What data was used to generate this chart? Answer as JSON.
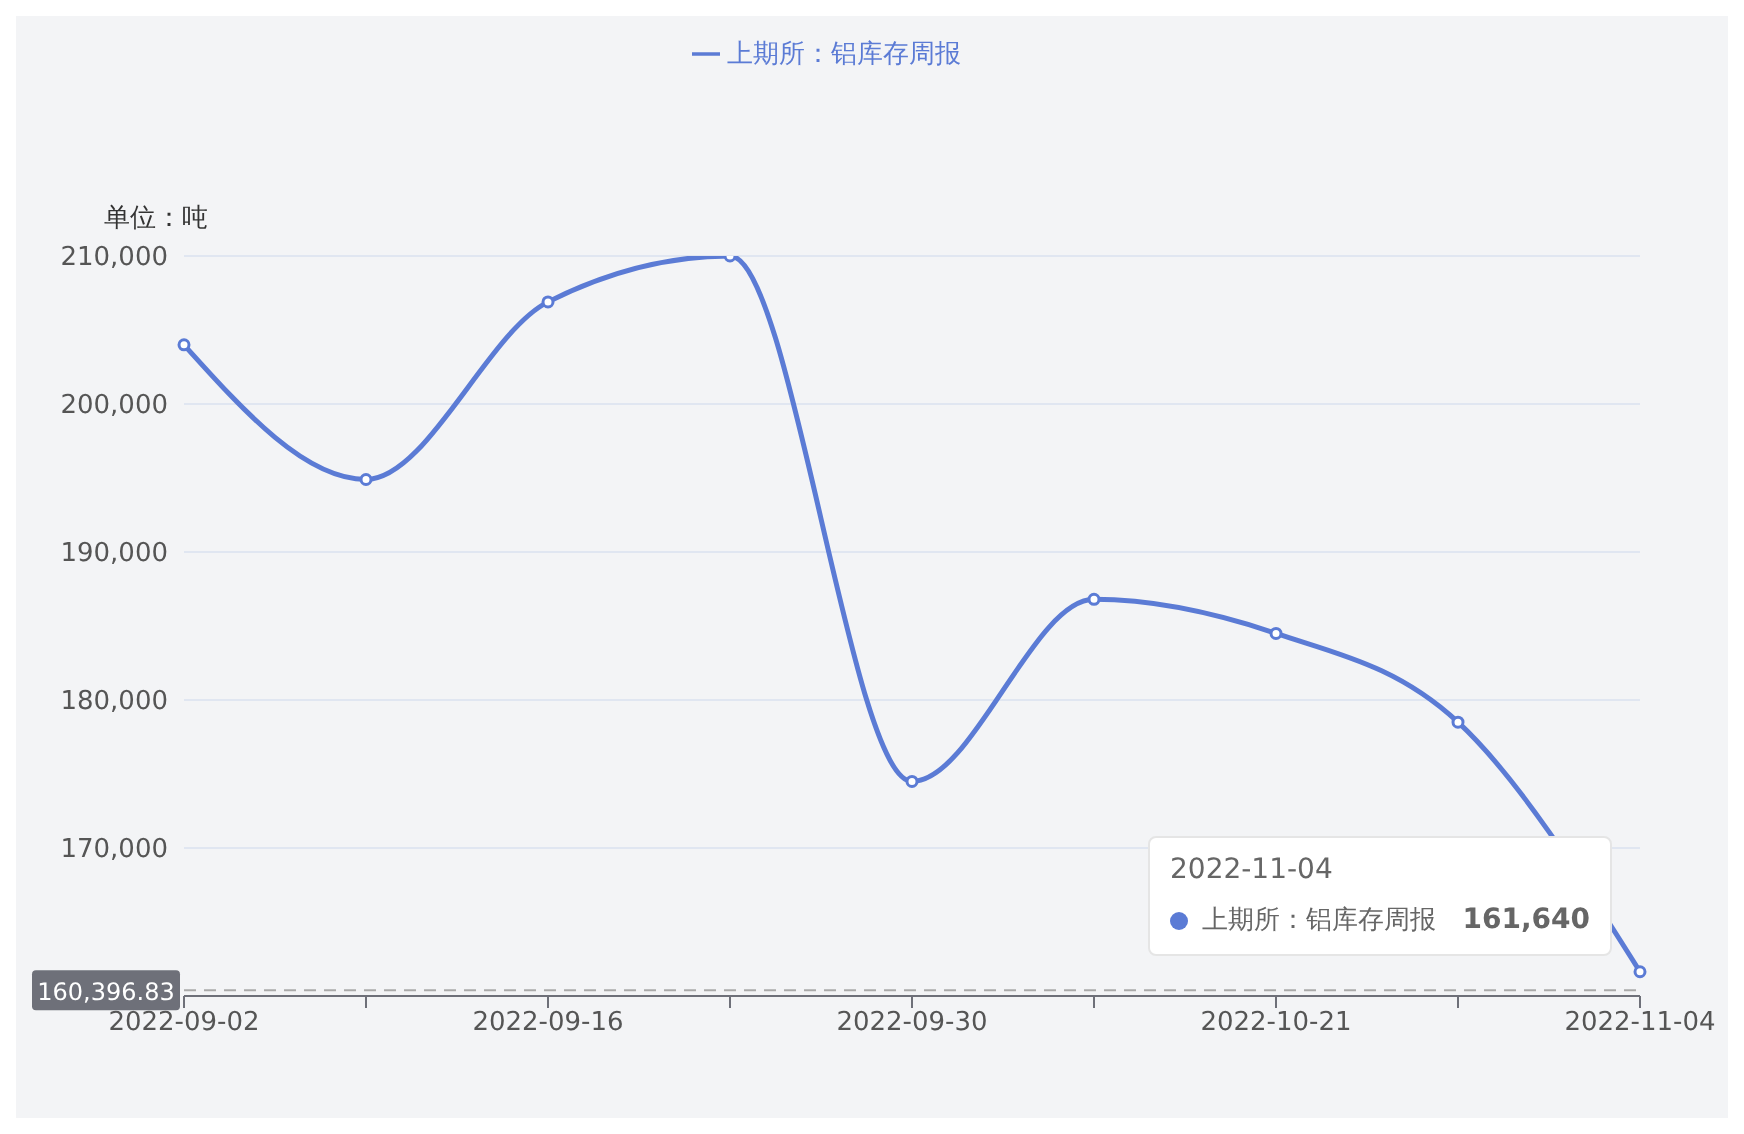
{
  "chart_data": {
    "type": "line",
    "ylabel": "单位：吨",
    "categories": [
      "2022-09-02",
      null,
      "2022-09-16",
      null,
      "2022-09-30",
      null,
      "2022-10-21",
      null,
      "2022-11-04"
    ],
    "series": [
      {
        "name": "上期所：铝库存周报",
        "color": "#5b7bd5",
        "values": [
          204000,
          194900,
          206900,
          210000,
          174500,
          186800,
          184500,
          178500,
          161640
        ]
      }
    ],
    "ylim": [
      160000,
      210000
    ],
    "yticks": [
      {
        "value": 170000,
        "label": "170,000"
      },
      {
        "value": 180000,
        "label": "180,000"
      },
      {
        "value": 190000,
        "label": "190,000"
      },
      {
        "value": 200000,
        "label": "200,000"
      },
      {
        "value": 210000,
        "label": "210,000"
      }
    ],
    "grid": "y",
    "legend": "top",
    "marker": "circle",
    "line_style": "solid",
    "ref_lines": [
      {
        "axis": "y",
        "value": 160396.83,
        "label": "160,396.83",
        "line_style": "dashed",
        "color": "#aaaaaa"
      }
    ],
    "annotations": [
      "2022-11-04",
      "上期所：铝库存周报",
      "161,640"
    ]
  }
}
